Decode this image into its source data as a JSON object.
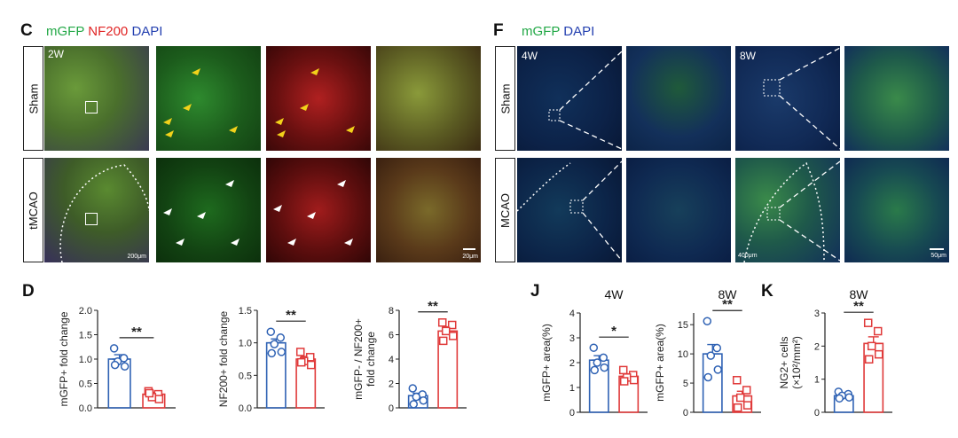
{
  "panel_c": {
    "letter": "C",
    "header": [
      {
        "text": "mGFP",
        "color": "#22a846"
      },
      {
        "text": "NF200",
        "color": "#e02424"
      },
      {
        "text": "DAPI",
        "color": "#2440b0"
      }
    ],
    "rows": [
      "Sham",
      "tMCAO"
    ],
    "time_label": "2W",
    "scalebars": [
      "200μm",
      "20μm"
    ]
  },
  "panel_f": {
    "letter": "F",
    "header": [
      {
        "text": "mGFP",
        "color": "#22a846"
      },
      {
        "text": "DAPI",
        "color": "#2440b0"
      }
    ],
    "rows": [
      "Sham",
      "MCAO"
    ],
    "time_labels": [
      "4W",
      "8W"
    ],
    "scalebars": [
      "400μm",
      "50μm"
    ]
  },
  "panel_d": {
    "letter": "D"
  },
  "panel_j": {
    "letter": "J"
  },
  "panel_k": {
    "letter": "K"
  },
  "colors": {
    "sham": "#2f62b4",
    "mcao": "#e03a3a"
  },
  "chart_data": [
    {
      "id": "d1",
      "type": "bar",
      "panel": "D",
      "title": "",
      "ylabel": "mGFP+ fold change",
      "ylim": [
        0,
        2.0
      ],
      "yticks": [
        "0.0",
        "0.5",
        "1.0",
        "1.5",
        "2.0"
      ],
      "significance": "**",
      "series": [
        {
          "mean": 1.0,
          "sem": 0.09,
          "points": [
            1.22,
            1.02,
            0.95,
            0.85,
            0.88
          ]
        },
        {
          "mean": 0.28,
          "sem": 0.04,
          "points": [
            0.34,
            0.28,
            0.22,
            0.18,
            0.3
          ]
        }
      ]
    },
    {
      "id": "d2",
      "type": "bar",
      "panel": "D",
      "title": "",
      "ylabel": "NF200+ fold change",
      "ylim": [
        0,
        1.5
      ],
      "yticks": [
        "0.0",
        "0.5",
        "1.0",
        "1.5"
      ],
      "significance": "**",
      "series": [
        {
          "mean": 1.0,
          "sem": 0.06,
          "points": [
            1.17,
            1.08,
            0.98,
            0.86,
            0.84
          ]
        },
        {
          "mean": 0.75,
          "sem": 0.04,
          "points": [
            0.86,
            0.78,
            0.72,
            0.66,
            0.7
          ]
        }
      ]
    },
    {
      "id": "d3",
      "type": "bar",
      "panel": "D",
      "title": "",
      "ylabel": "mGFP- / NF200+",
      "ylabel2": "fold change",
      "ylim": [
        0,
        8
      ],
      "yticks": [
        "0",
        "2",
        "4",
        "6",
        "8"
      ],
      "significance": "**",
      "series": [
        {
          "mean": 1.0,
          "sem": 0.2,
          "points": [
            1.6,
            1.1,
            0.9,
            0.6,
            0.3
          ]
        },
        {
          "mean": 6.3,
          "sem": 0.35,
          "points": [
            7.0,
            6.8,
            6.3,
            5.9,
            5.5
          ]
        }
      ]
    },
    {
      "id": "j1",
      "type": "bar",
      "panel": "J",
      "title": "4W",
      "ylabel": "mGFP+ area(%)",
      "ylim": [
        0,
        4
      ],
      "yticks": [
        "0",
        "1",
        "2",
        "3",
        "4"
      ],
      "significance": "*",
      "series": [
        {
          "mean": 2.1,
          "sem": 0.18,
          "points": [
            2.6,
            2.2,
            2.0,
            1.8,
            1.7
          ]
        },
        {
          "mean": 1.45,
          "sem": 0.1,
          "points": [
            1.7,
            1.5,
            1.4,
            1.3,
            1.25
          ]
        }
      ]
    },
    {
      "id": "j2",
      "type": "bar",
      "panel": "J",
      "title": "8W",
      "ylabel": "mGFP+ area(%)",
      "ylim": [
        0,
        17
      ],
      "yticks": [
        "0",
        "5",
        "10",
        "15"
      ],
      "significance": "**",
      "series": [
        {
          "mean": 10.0,
          "sem": 1.6,
          "points": [
            15.6,
            11.0,
            9.7,
            7.3,
            6.0
          ]
        },
        {
          "mean": 2.8,
          "sem": 0.8,
          "points": [
            5.5,
            3.8,
            2.5,
            1.2,
            0.8
          ]
        }
      ]
    },
    {
      "id": "k1",
      "type": "bar",
      "panel": "K",
      "title": "8W",
      "ylabel": "NG2+ cells",
      "ylabel2": "(×10²/mm²)",
      "ylim": [
        0,
        3
      ],
      "yticks": [
        "0",
        "1",
        "2",
        "3"
      ],
      "significance": "**",
      "series": [
        {
          "mean": 0.5,
          "sem": 0.03,
          "points": [
            0.62,
            0.55,
            0.5,
            0.45,
            0.42
          ]
        },
        {
          "mean": 2.08,
          "sem": 0.2,
          "points": [
            2.7,
            2.45,
            2.0,
            1.75,
            1.6
          ]
        }
      ]
    }
  ]
}
